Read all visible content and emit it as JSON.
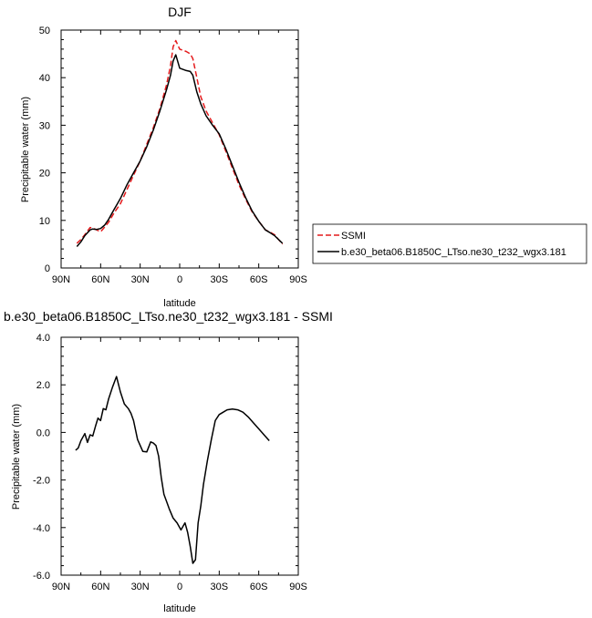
{
  "chart_data": [
    {
      "type": "line",
      "title": "DJF",
      "xlabel": "latitude",
      "ylabel": "Precipitable water (mm)",
      "xlim": [
        -90,
        90
      ],
      "ylim": [
        0,
        50
      ],
      "xticks": [
        -90,
        -60,
        -30,
        0,
        30,
        60,
        90
      ],
      "xtick_labels": [
        "90N",
        "60N",
        "30N",
        "0",
        "30S",
        "60S",
        "90S"
      ],
      "yticks": [
        0,
        10,
        20,
        30,
        40,
        50
      ],
      "ytick_labels": [
        "0",
        "10",
        "20",
        "30",
        "40",
        "50"
      ],
      "legend_position": "right",
      "series": [
        {
          "name": "SSMI",
          "color": "#e41a1c",
          "dash": "dashed",
          "x": [
            -78,
            -75,
            -72,
            -68,
            -66,
            -63,
            -60,
            -57,
            -54,
            -50,
            -45,
            -40,
            -35,
            -30,
            -25,
            -20,
            -15,
            -10,
            -7,
            -5,
            -3,
            0,
            5,
            8,
            10,
            13,
            16,
            20,
            25,
            30,
            35,
            40,
            45,
            50,
            55,
            60,
            65,
            68,
            72,
            75,
            78
          ],
          "y": [
            5.2,
            6.0,
            7.0,
            8.5,
            8.4,
            8.0,
            7.6,
            8.6,
            9.6,
            11.5,
            13.5,
            16.5,
            19.5,
            22.5,
            26.0,
            29.5,
            33.5,
            38.5,
            42.5,
            46.5,
            47.8,
            46.0,
            45.5,
            45.0,
            44.0,
            40.0,
            36.0,
            33.0,
            30.5,
            28.0,
            24.5,
            21.0,
            17.5,
            14.5,
            11.8,
            9.8,
            8.0,
            7.6,
            7.0,
            6.0,
            5.0
          ]
        },
        {
          "name": "b.e30_beta06.B1850C_LTso.ne30_t232_wgx3.181",
          "color": "#000000",
          "dash": "solid",
          "x": [
            -78,
            -75,
            -72,
            -68,
            -66,
            -63,
            -60,
            -57,
            -54,
            -50,
            -45,
            -40,
            -35,
            -30,
            -25,
            -20,
            -15,
            -10,
            -7,
            -5,
            -3,
            0,
            5,
            8,
            10,
            13,
            16,
            20,
            25,
            30,
            35,
            40,
            45,
            50,
            55,
            60,
            65,
            68,
            72,
            75,
            78
          ],
          "y": [
            4.5,
            5.5,
            6.8,
            8.0,
            8.2,
            8.1,
            8.3,
            9.0,
            10.2,
            12.2,
            14.6,
            17.5,
            20.0,
            22.5,
            25.5,
            29.0,
            33.0,
            37.5,
            40.5,
            43.5,
            44.8,
            42.0,
            41.5,
            41.3,
            40.5,
            37.0,
            34.5,
            32.0,
            30.0,
            28.2,
            25.0,
            21.5,
            18.0,
            14.8,
            12.0,
            9.8,
            8.0,
            7.5,
            6.8,
            6.0,
            5.2
          ]
        }
      ]
    },
    {
      "type": "line",
      "title": "b.e30_beta06.B1850C_LTso.ne30_t232_wgx3.181 - SSMI",
      "xlabel": "latitude",
      "ylabel": "Precipitable water (mm)",
      "xlim": [
        -90,
        90
      ],
      "ylim": [
        -6,
        4
      ],
      "xticks": [
        -90,
        -60,
        -30,
        0,
        30,
        60,
        90
      ],
      "xtick_labels": [
        "90N",
        "60N",
        "30N",
        "0",
        "30S",
        "60S",
        "90S"
      ],
      "yticks": [
        -6,
        -4,
        -2,
        0,
        2,
        4
      ],
      "ytick_labels": [
        "-6.0",
        "-4.0",
        "-2.0",
        "0.0",
        "2.0",
        "4.0"
      ],
      "series": [
        {
          "color": "#000000",
          "dash": "solid",
          "x": [
            -79,
            -77,
            -75,
            -72,
            -70,
            -68,
            -66,
            -64,
            -62,
            -60,
            -58,
            -56,
            -54,
            -51,
            -48,
            -45,
            -42,
            -39,
            -37,
            -35,
            -32,
            -28,
            -25,
            -22,
            -20,
            -18,
            -16,
            -14,
            -12,
            -10,
            -8,
            -5,
            -2,
            1,
            4,
            6,
            8,
            10,
            12,
            14,
            16,
            18,
            21,
            24,
            27,
            30,
            33,
            36,
            40,
            44,
            48,
            52,
            56,
            60,
            64,
            68
          ],
          "y": [
            -0.75,
            -0.65,
            -0.35,
            -0.05,
            -0.42,
            -0.1,
            -0.15,
            0.25,
            0.6,
            0.5,
            1.0,
            0.95,
            1.4,
            1.9,
            2.35,
            1.7,
            1.2,
            1.0,
            0.8,
            0.5,
            -0.3,
            -0.8,
            -0.82,
            -0.4,
            -0.45,
            -0.55,
            -1.0,
            -1.9,
            -2.6,
            -2.9,
            -3.2,
            -3.6,
            -3.8,
            -4.1,
            -3.8,
            -4.2,
            -4.8,
            -5.5,
            -5.35,
            -3.8,
            -3.1,
            -2.2,
            -1.2,
            -0.3,
            0.5,
            0.75,
            0.85,
            0.95,
            0.98,
            0.95,
            0.85,
            0.65,
            0.4,
            0.15,
            -0.1,
            -0.35
          ]
        }
      ]
    }
  ]
}
